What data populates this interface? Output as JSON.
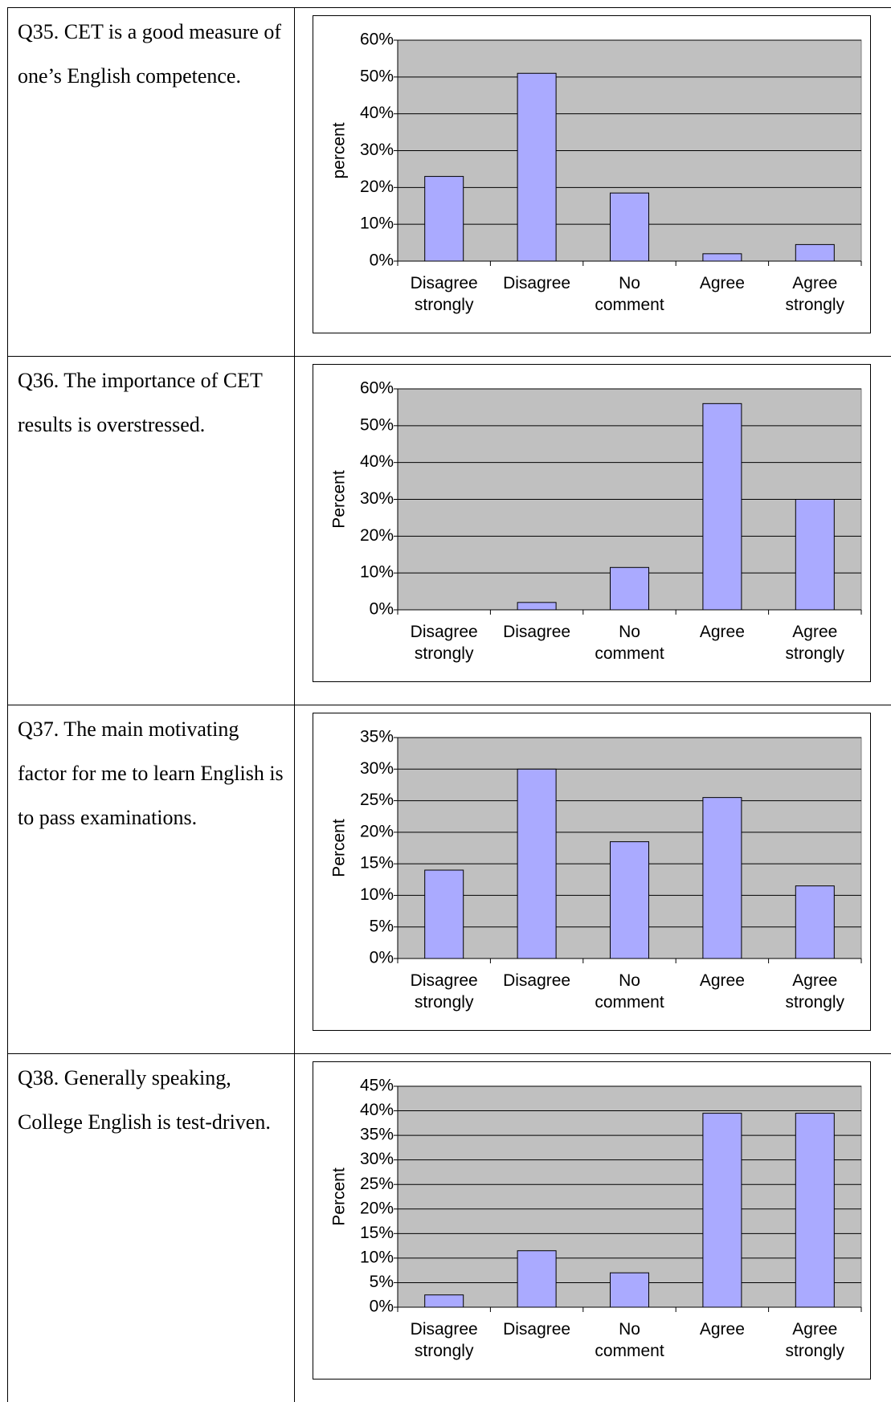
{
  "rows": [
    {
      "question": "Q35. CET is a good measure of one’s English competence.",
      "chart": {
        "type": "bar",
        "ylabel": "percent",
        "categories": [
          "Disagree strongly",
          "Disagree",
          "No comment",
          "Agree",
          "Agree strongly"
        ],
        "values": [
          23,
          51,
          18.5,
          2,
          4.5
        ],
        "color": "#aaaaff",
        "ylim": [
          0,
          60
        ],
        "yticks": [
          {
            "value": 0,
            "label": "0%"
          },
          {
            "value": 10,
            "label": "10%"
          },
          {
            "value": 20,
            "label": "20%"
          },
          {
            "value": 30,
            "label": "30%"
          },
          {
            "value": 40,
            "label": "40%"
          },
          {
            "value": 50,
            "label": "50%"
          },
          {
            "value": 60,
            "label": "60%"
          }
        ],
        "grid": true
      }
    },
    {
      "question": "Q36. The importance of CET results is overstressed.",
      "chart": {
        "type": "bar",
        "ylabel": "Percent",
        "categories": [
          "Disagree strongly",
          "Disagree",
          "No comment",
          "Agree",
          "Agree strongly"
        ],
        "values": [
          0,
          2,
          11.5,
          56,
          30
        ],
        "color": "#aaaaff",
        "ylim": [
          0,
          60
        ],
        "yticks": [
          {
            "value": 0,
            "label": "0%"
          },
          {
            "value": 10,
            "label": "10%"
          },
          {
            "value": 20,
            "label": "20%"
          },
          {
            "value": 30,
            "label": "30%"
          },
          {
            "value": 40,
            "label": "40%"
          },
          {
            "value": 50,
            "label": "50%"
          },
          {
            "value": 60,
            "label": "60%"
          }
        ],
        "grid": true
      }
    },
    {
      "question": "Q37. The main motivating factor for me to learn English is to pass examinations.",
      "chart": {
        "type": "bar",
        "ylabel": "Percent",
        "categories": [
          "Disagree strongly",
          "Disagree",
          "No comment",
          "Agree",
          "Agree strongly"
        ],
        "values": [
          14,
          30,
          18.5,
          25.5,
          11.5
        ],
        "color": "#aaaaff",
        "ylim": [
          0,
          35
        ],
        "yticks": [
          {
            "value": 0,
            "label": "0%"
          },
          {
            "value": 5,
            "label": "5%"
          },
          {
            "value": 10,
            "label": "10%"
          },
          {
            "value": 15,
            "label": "15%"
          },
          {
            "value": 20,
            "label": "20%"
          },
          {
            "value": 25,
            "label": "25%"
          },
          {
            "value": 30,
            "label": "30%"
          },
          {
            "value": 35,
            "label": "35%"
          }
        ],
        "grid": true
      }
    },
    {
      "question": "Q38. Generally speaking, College English is test-driven.",
      "chart": {
        "type": "bar",
        "ylabel": "Percent",
        "categories": [
          "Disagree strongly",
          "Disagree",
          "No comment",
          "Agree",
          "Agree strongly"
        ],
        "values": [
          2.5,
          11.5,
          7,
          39.5,
          39.5
        ],
        "color": "#aaaaff",
        "ylim": [
          0,
          45
        ],
        "yticks": [
          {
            "value": 0,
            "label": "0%"
          },
          {
            "value": 5,
            "label": "5%"
          },
          {
            "value": 10,
            "label": "10%"
          },
          {
            "value": 15,
            "label": "15%"
          },
          {
            "value": 20,
            "label": "20%"
          },
          {
            "value": 25,
            "label": "25%"
          },
          {
            "value": 30,
            "label": "30%"
          },
          {
            "value": 35,
            "label": "35%"
          },
          {
            "value": 40,
            "label": "40%"
          },
          {
            "value": 45,
            "label": "45%"
          }
        ],
        "grid": true
      }
    }
  ]
}
